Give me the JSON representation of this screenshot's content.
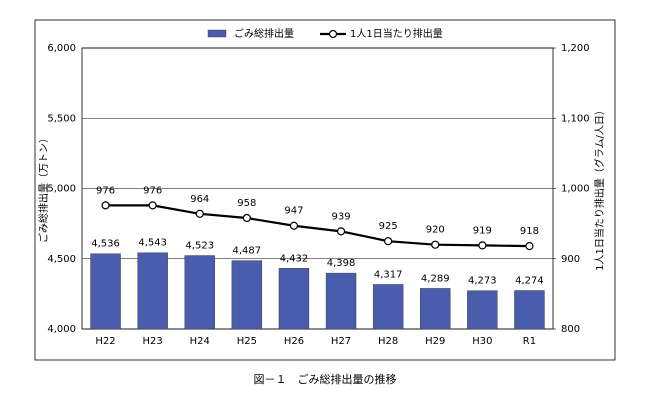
{
  "chart_data": {
    "type": "bar",
    "title": "図－１　ごみ総排出量の推移",
    "y_label": "ごみ総排出量（万トン）",
    "y2_label": "1人1日当たり排出量（グラム/人日）",
    "categories": [
      "H22",
      "H23",
      "H24",
      "H25",
      "H26",
      "H27",
      "H28",
      "H29",
      "H30",
      "R1"
    ],
    "series": [
      {
        "name": "ごみ総排出量",
        "type": "bar",
        "color": "#4a5cac",
        "values": [
          4536,
          4543,
          4523,
          4487,
          4432,
          4398,
          4317,
          4289,
          4273,
          4274
        ],
        "value_labels": [
          "4,536",
          "4,543",
          "4,523",
          "4,487",
          "4,432",
          "4,398",
          "4,317",
          "4,289",
          "4,273",
          "4,274"
        ]
      },
      {
        "name": "1人1日当たり排出量",
        "type": "line",
        "axis": "y2",
        "color": "#000000",
        "values": [
          976,
          976,
          964,
          958,
          947,
          939,
          925,
          920,
          919,
          918
        ]
      }
    ],
    "ylim": [
      4000,
      6000
    ],
    "yticks": [
      {
        "value": 4000,
        "label": "4,000"
      },
      {
        "value": 4500,
        "label": "4,500"
      },
      {
        "value": 5000,
        "label": "5,000"
      },
      {
        "value": 5500,
        "label": "5,500"
      },
      {
        "value": 6000,
        "label": "6,000"
      }
    ],
    "y2lim": [
      800,
      1200
    ],
    "y2ticks": [
      800,
      900,
      {
        "value": 1000,
        "label": "1,000"
      },
      {
        "value": 1100,
        "label": "1,100"
      },
      {
        "value": 1200,
        "label": "1,200"
      }
    ],
    "grid": true,
    "legend": "top"
  }
}
